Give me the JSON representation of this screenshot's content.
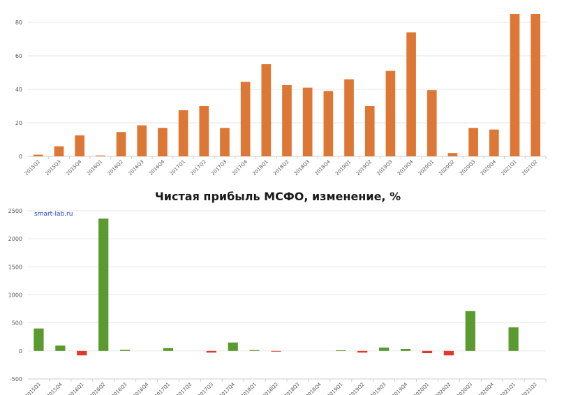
{
  "chart_data": [
    {
      "type": "bar",
      "title": "",
      "xlabel": "",
      "ylabel": "",
      "ylim": [
        0,
        90
      ],
      "yticks": [
        0,
        20,
        40,
        60,
        80
      ],
      "grid": true,
      "bar_color": "#dc7735",
      "categories": [
        "2015Q2",
        "2015Q3",
        "2015Q4",
        "2016Q1",
        "2016Q2",
        "2016Q3",
        "2016Q4",
        "2017Q1",
        "2017Q2",
        "2017Q3",
        "2017Q4",
        "2018Q1",
        "2018Q2",
        "2018Q3",
        "2018Q4",
        "2019Q1",
        "2019Q2",
        "2019Q3",
        "2019Q4",
        "2020Q1",
        "2020Q2",
        "2020Q3",
        "2020Q4",
        "2021Q1",
        "2021Q2"
      ],
      "values": [
        1,
        6,
        12.5,
        0.5,
        14.5,
        18.5,
        17,
        27.5,
        30,
        17,
        44.5,
        55,
        42.5,
        41,
        39,
        46,
        30,
        51,
        74,
        39.5,
        2,
        17,
        16,
        85,
        85
      ]
    },
    {
      "type": "bar",
      "title": "Чистая прибыль МСФО, изменение, %",
      "watermark": "smart-lab.ru",
      "xlabel": "",
      "ylabel": "",
      "ylim": [
        -500,
        2500
      ],
      "yticks": [
        -500,
        0,
        500,
        1000,
        1500,
        2000,
        2500
      ],
      "grid": true,
      "positive_color": "#5a9a2e",
      "negative_color": "#de3a2c",
      "categories": [
        "2015Q3",
        "2015Q4",
        "2016Q1",
        "2016Q2",
        "2016Q3",
        "2016Q4",
        "2017Q1",
        "2017Q2",
        "2017Q3",
        "2017Q4",
        "2018Q1",
        "2018Q2",
        "2018Q3",
        "2018Q4",
        "2019Q1",
        "2019Q2",
        "2019Q3",
        "2019Q4",
        "2020Q1",
        "2020Q2",
        "2020Q3",
        "2020Q4",
        "2021Q1",
        "2021Q2"
      ],
      "values": [
        400,
        95,
        -80,
        2360,
        20,
        0,
        50,
        0,
        -30,
        150,
        15,
        -10,
        0,
        0,
        10,
        -30,
        60,
        35,
        -40,
        -80,
        710,
        0,
        420,
        0
      ]
    }
  ]
}
